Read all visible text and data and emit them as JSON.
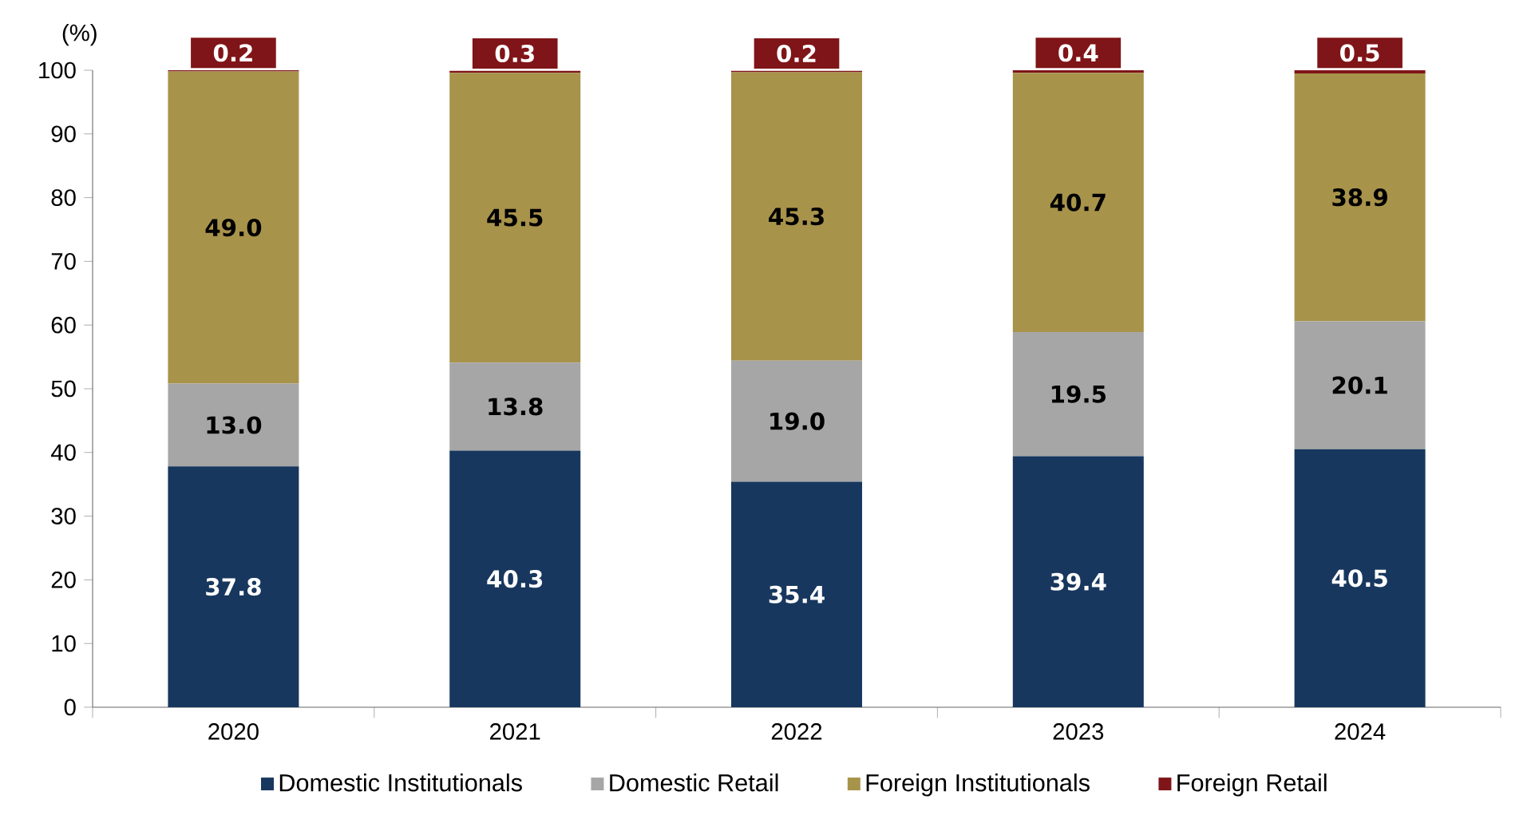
{
  "chart_data": {
    "type": "bar",
    "stacked": true,
    "ylabel": "(%)",
    "categories": [
      "2020",
      "2021",
      "2022",
      "2023",
      "2024"
    ],
    "series": [
      {
        "name": "Domestic Institutionals",
        "color": "#17375e",
        "values": [
          37.8,
          40.3,
          35.4,
          39.4,
          40.5
        ],
        "value_labels": [
          "37.8",
          "40.3",
          "35.4",
          "39.4",
          "40.5"
        ]
      },
      {
        "name": "Domestic Retail",
        "color": "#a6a6a6",
        "values": [
          13.0,
          13.8,
          19.0,
          19.5,
          20.1
        ],
        "value_labels": [
          "13.0",
          "13.8",
          "19.0",
          "19.5",
          "20.1"
        ]
      },
      {
        "name": "Foreign Institutionals",
        "color": "#a8934b",
        "values": [
          49.0,
          45.5,
          45.3,
          40.7,
          38.9
        ],
        "value_labels": [
          "49.0",
          "45.5",
          "45.3",
          "40.7",
          "38.9"
        ]
      },
      {
        "name": "Foreign Retail",
        "color": "#7f1518",
        "values": [
          0.2,
          0.3,
          0.2,
          0.4,
          0.5
        ],
        "value_labels": [
          "0.2",
          "0.3",
          "0.2",
          "0.4",
          "0.5"
        ]
      }
    ],
    "ylim": [
      0,
      100
    ],
    "yticks": [
      0,
      10,
      20,
      30,
      40,
      50,
      60,
      70,
      80,
      90,
      100
    ],
    "legend": "bottom",
    "grid": false
  }
}
